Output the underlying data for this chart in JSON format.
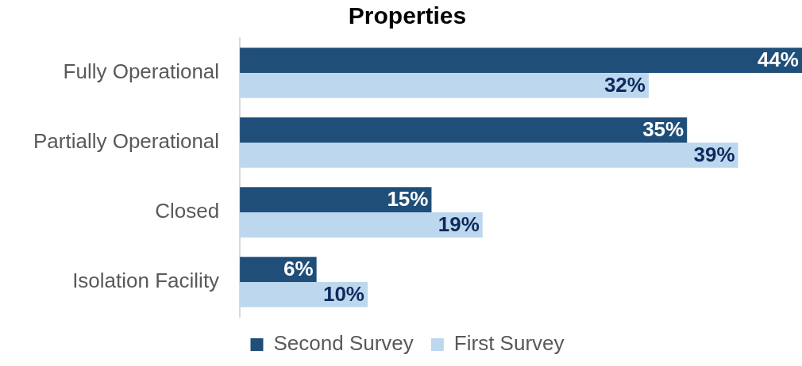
{
  "chart_data": {
    "type": "bar",
    "orientation": "horizontal",
    "title": "Properties",
    "categories": [
      "Fully Operational",
      "Partially Operational",
      "Closed",
      "Isolation Facility"
    ],
    "series": [
      {
        "name": "Second Survey",
        "color": "#1f4e79",
        "values": [
          44,
          35,
          15,
          6
        ],
        "value_labels": [
          "44%",
          "35%",
          "15%",
          "6%"
        ]
      },
      {
        "name": "First Survey",
        "color": "#bdd7ee",
        "values": [
          32,
          39,
          19,
          10
        ],
        "value_labels": [
          "32%",
          "39%",
          "19%",
          "10%"
        ]
      }
    ],
    "legend": "bottom",
    "tick_labels": "y"
  }
}
